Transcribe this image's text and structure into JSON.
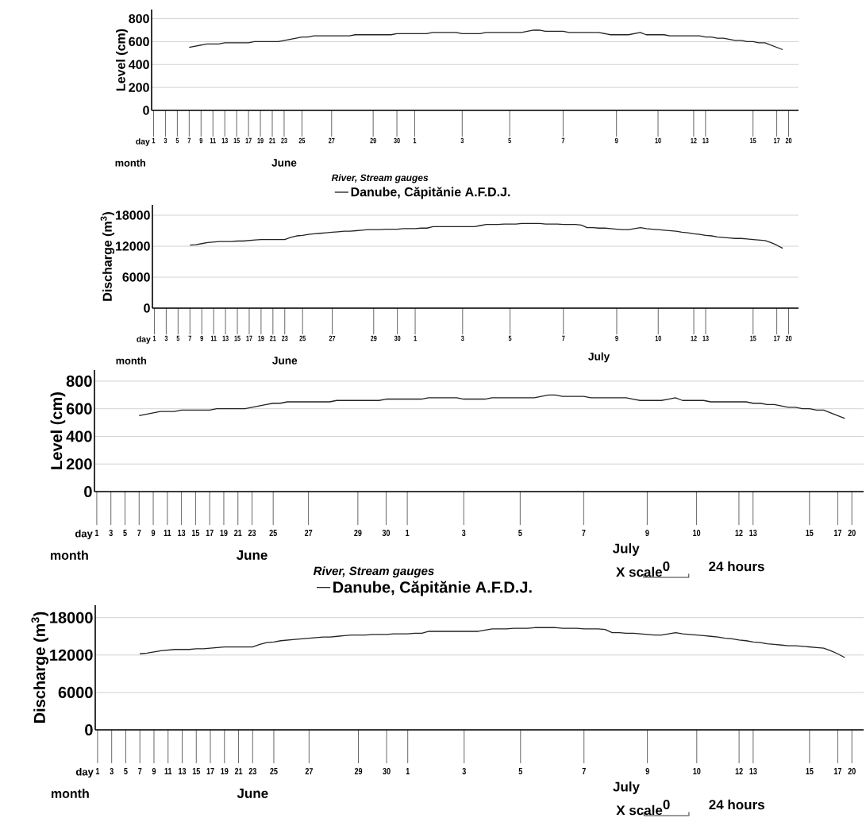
{
  "chart_data": [
    {
      "type": "line",
      "ylabel": "Level (cm)",
      "legend_title": "*River, Stream gauges*",
      "legend": "bottom",
      "grid": "y",
      "categories": [
        "1",
        null,
        "3",
        null,
        "5",
        null,
        "7",
        null,
        "9",
        null,
        "11",
        null,
        "13",
        null,
        "15",
        null,
        "17",
        null,
        "19",
        null,
        "21",
        null,
        "23",
        null,
        null,
        "25",
        null,
        null,
        null,
        null,
        "27",
        null,
        null,
        null,
        null,
        null,
        null,
        "29",
        null,
        null,
        null,
        "30",
        null,
        null,
        "1",
        null,
        null,
        null,
        null,
        null,
        null,
        null,
        "3",
        null,
        null,
        null,
        null,
        null,
        null,
        null,
        "5",
        null,
        null,
        null,
        null,
        null,
        null,
        null,
        null,
        "7",
        null,
        null,
        null,
        null,
        null,
        null,
        null,
        null,
        "9",
        null,
        null,
        null,
        null,
        null,
        null,
        "10",
        null,
        null,
        null,
        null,
        null,
        "12",
        null,
        "13",
        null,
        null,
        null,
        null,
        null,
        null,
        null,
        "15",
        null,
        null,
        null,
        "17",
        null,
        "20",
        null
      ],
      "series": [
        {
          "name": "Danube, Căpitănie A.F.D.J.",
          "color": "#222222",
          "values": [
            null,
            null,
            null,
            null,
            null,
            null,
            550,
            560,
            570,
            580,
            580,
            580,
            590,
            590,
            590,
            590,
            590,
            600,
            600,
            600,
            600,
            600,
            610,
            620,
            630,
            640,
            640,
            650,
            650,
            650,
            650,
            650,
            650,
            650,
            660,
            660,
            660,
            660,
            660,
            660,
            660,
            670,
            670,
            670,
            670,
            670,
            670,
            680,
            680,
            680,
            680,
            680,
            670,
            670,
            670,
            670,
            680,
            680,
            680,
            680,
            680,
            680,
            680,
            690,
            700,
            700,
            690,
            690,
            690,
            690,
            680,
            680,
            680,
            680,
            680,
            680,
            670,
            660,
            660,
            660,
            660,
            670,
            680,
            660,
            660,
            660,
            660,
            650,
            650,
            650,
            650,
            650,
            650,
            640,
            640,
            630,
            630,
            620,
            610,
            610,
            600,
            600,
            590,
            590,
            570,
            550,
            530,
            null,
            null
          ]
        }
      ],
      "ylim": [
        0,
        880
      ],
      "yticks": [
        0,
        200,
        400,
        600,
        800
      ],
      "annotations": [
        "day",
        "month",
        "June"
      ]
    },
    {
      "type": "line",
      "ylabel": "Discharge (m$^{3}$)",
      "grid": "y",
      "categories": [
        "1",
        null,
        "3",
        null,
        "5",
        null,
        "7",
        null,
        "9",
        null,
        "11",
        null,
        "13",
        null,
        "15",
        null,
        "17",
        null,
        "19",
        null,
        "21",
        null,
        "23",
        null,
        null,
        "25",
        null,
        null,
        null,
        null,
        "27",
        null,
        null,
        null,
        null,
        null,
        null,
        "29",
        null,
        null,
        null,
        "30",
        null,
        null,
        "1",
        null,
        null,
        null,
        null,
        null,
        null,
        null,
        "3",
        null,
        null,
        null,
        null,
        null,
        null,
        null,
        "5",
        null,
        null,
        null,
        null,
        null,
        null,
        null,
        null,
        "7",
        null,
        null,
        null,
        null,
        null,
        null,
        null,
        null,
        "9",
        null,
        null,
        null,
        null,
        null,
        null,
        "10",
        null,
        null,
        null,
        null,
        null,
        "12",
        null,
        "13",
        null,
        null,
        null,
        null,
        null,
        null,
        null,
        "15",
        null,
        null,
        null,
        "17",
        null,
        "20",
        null
      ],
      "series": [
        {
          "color": "#222222",
          "values": [
            null,
            null,
            null,
            null,
            null,
            null,
            12200,
            12300,
            12500,
            12700,
            12800,
            12900,
            12900,
            12900,
            13000,
            13000,
            13100,
            13200,
            13300,
            13300,
            13300,
            13300,
            13300,
            13700,
            14000,
            14100,
            14300,
            14400,
            14500,
            14600,
            14700,
            14800,
            14900,
            14900,
            15000,
            15100,
            15200,
            15200,
            15200,
            15300,
            15300,
            15300,
            15400,
            15400,
            15400,
            15500,
            15500,
            15800,
            15800,
            15800,
            15800,
            15800,
            15800,
            15800,
            15800,
            16000,
            16200,
            16200,
            16200,
            16300,
            16300,
            16300,
            16400,
            16400,
            16400,
            16400,
            16300,
            16300,
            16300,
            16200,
            16200,
            16200,
            16100,
            15600,
            15600,
            15500,
            15500,
            15400,
            15300,
            15200,
            15200,
            15400,
            15600,
            15400,
            15300,
            15200,
            15100,
            15000,
            14900,
            14700,
            14600,
            14400,
            14300,
            14100,
            14000,
            13800,
            13700,
            13600,
            13500,
            13500,
            13400,
            13300,
            13200,
            13100,
            12700,
            12200,
            11600,
            null,
            null
          ]
        }
      ],
      "ylim": [
        0,
        20000
      ],
      "yticks": [
        0,
        6000,
        12000,
        18000
      ],
      "annotations": [
        "day",
        "month",
        "June",
        "July"
      ]
    },
    {
      "type": "line",
      "ylabel": "Level (cm)",
      "legend_title": "*River, Stream gauges*",
      "legend": "bottom",
      "grid": "y",
      "categories": [
        "1",
        null,
        "3",
        null,
        "5",
        null,
        "7",
        null,
        "9",
        null,
        "11",
        null,
        "13",
        null,
        "15",
        null,
        "17",
        null,
        "19",
        null,
        "21",
        null,
        "23",
        null,
        null,
        "25",
        null,
        null,
        null,
        null,
        "27",
        null,
        null,
        null,
        null,
        null,
        null,
        "29",
        null,
        null,
        null,
        "30",
        null,
        null,
        "1",
        null,
        null,
        null,
        null,
        null,
        null,
        null,
        "3",
        null,
        null,
        null,
        null,
        null,
        null,
        null,
        "5",
        null,
        null,
        null,
        null,
        null,
        null,
        null,
        null,
        "7",
        null,
        null,
        null,
        null,
        null,
        null,
        null,
        null,
        "9",
        null,
        null,
        null,
        null,
        null,
        null,
        "10",
        null,
        null,
        null,
        null,
        null,
        "12",
        null,
        "13",
        null,
        null,
        null,
        null,
        null,
        null,
        null,
        "15",
        null,
        null,
        null,
        "17",
        null,
        "20",
        null
      ],
      "series": [
        {
          "name": "Danube, Căpitănie A.F.D.J.",
          "color": "#222222",
          "values": [
            null,
            null,
            null,
            null,
            null,
            null,
            550,
            560,
            570,
            580,
            580,
            580,
            590,
            590,
            590,
            590,
            590,
            600,
            600,
            600,
            600,
            600,
            610,
            620,
            630,
            640,
            640,
            650,
            650,
            650,
            650,
            650,
            650,
            650,
            660,
            660,
            660,
            660,
            660,
            660,
            660,
            670,
            670,
            670,
            670,
            670,
            670,
            680,
            680,
            680,
            680,
            680,
            670,
            670,
            670,
            670,
            680,
            680,
            680,
            680,
            680,
            680,
            680,
            690,
            700,
            700,
            690,
            690,
            690,
            690,
            680,
            680,
            680,
            680,
            680,
            680,
            670,
            660,
            660,
            660,
            660,
            670,
            680,
            660,
            660,
            660,
            660,
            650,
            650,
            650,
            650,
            650,
            650,
            640,
            640,
            630,
            630,
            620,
            610,
            610,
            600,
            600,
            590,
            590,
            570,
            550,
            530,
            null,
            null
          ]
        }
      ],
      "ylim": [
        0,
        880
      ],
      "yticks": [
        0,
        200,
        400,
        600,
        800
      ],
      "annotations": [
        "day",
        "month",
        "June",
        "July",
        "X scale",
        "0",
        "24 hours"
      ]
    },
    {
      "type": "line",
      "ylabel": "Discharge (m$^{3}$)",
      "grid": "y",
      "categories": [
        "1",
        null,
        "3",
        null,
        "5",
        null,
        "7",
        null,
        "9",
        null,
        "11",
        null,
        "13",
        null,
        "15",
        null,
        "17",
        null,
        "19",
        null,
        "21",
        null,
        "23",
        null,
        null,
        "25",
        null,
        null,
        null,
        null,
        "27",
        null,
        null,
        null,
        null,
        null,
        null,
        "29",
        null,
        null,
        null,
        "30",
        null,
        null,
        "1",
        null,
        null,
        null,
        null,
        null,
        null,
        null,
        "3",
        null,
        null,
        null,
        null,
        null,
        null,
        null,
        "5",
        null,
        null,
        null,
        null,
        null,
        null,
        null,
        null,
        "7",
        null,
        null,
        null,
        null,
        null,
        null,
        null,
        null,
        "9",
        null,
        null,
        null,
        null,
        null,
        null,
        "10",
        null,
        null,
        null,
        null,
        null,
        "12",
        null,
        "13",
        null,
        null,
        null,
        null,
        null,
        null,
        null,
        "15",
        null,
        null,
        null,
        "17",
        null,
        "20",
        null
      ],
      "series": [
        {
          "color": "#222222",
          "values": [
            null,
            null,
            null,
            null,
            null,
            null,
            12200,
            12300,
            12500,
            12700,
            12800,
            12900,
            12900,
            12900,
            13000,
            13000,
            13100,
            13200,
            13300,
            13300,
            13300,
            13300,
            13300,
            13700,
            14000,
            14100,
            14300,
            14400,
            14500,
            14600,
            14700,
            14800,
            14900,
            14900,
            15000,
            15100,
            15200,
            15200,
            15200,
            15300,
            15300,
            15300,
            15400,
            15400,
            15400,
            15500,
            15500,
            15800,
            15800,
            15800,
            15800,
            15800,
            15800,
            15800,
            15800,
            16000,
            16200,
            16200,
            16200,
            16300,
            16300,
            16300,
            16400,
            16400,
            16400,
            16400,
            16300,
            16300,
            16300,
            16200,
            16200,
            16200,
            16100,
            15600,
            15600,
            15500,
            15500,
            15400,
            15300,
            15200,
            15200,
            15400,
            15600,
            15400,
            15300,
            15200,
            15100,
            15000,
            14900,
            14700,
            14600,
            14400,
            14300,
            14100,
            14000,
            13800,
            13700,
            13600,
            13500,
            13500,
            13400,
            13300,
            13200,
            13100,
            12700,
            12200,
            11600,
            null,
            null
          ]
        }
      ],
      "ylim": [
        0,
        20000
      ],
      "yticks": [
        0,
        6000,
        12000,
        18000
      ],
      "annotations": [
        "day",
        "month",
        "June",
        "July",
        "X scale",
        "0",
        "24 hours"
      ]
    }
  ]
}
